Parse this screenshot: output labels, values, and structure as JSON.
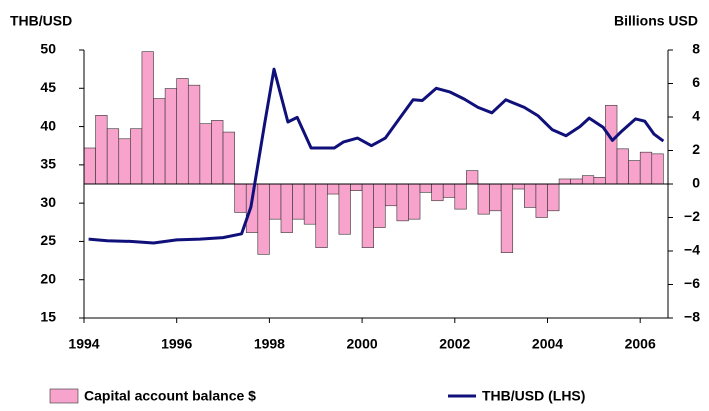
{
  "chart_data": {
    "type": "combo",
    "y_label": "THB/USD",
    "y2_label": "Billions USD",
    "xlim": [
      1994,
      2006.6
    ],
    "xticks": [
      1994,
      1996,
      1998,
      2000,
      2002,
      2004,
      2006
    ],
    "ylim": [
      15,
      50
    ],
    "yticks": [
      15,
      20,
      25,
      30,
      35,
      40,
      45,
      50
    ],
    "y2lim": [
      -8,
      8
    ],
    "y2ticks": [
      {
        "value": -8,
        "label": "−8"
      },
      {
        "value": -6,
        "label": "−6"
      },
      {
        "value": -4,
        "label": "−4"
      },
      {
        "value": -2,
        "label": "−2"
      },
      0,
      2,
      4,
      6,
      8
    ],
    "series": [
      {
        "name": "Capital account balance $",
        "type": "bar",
        "axis": "y2",
        "color": "#f7a3cb",
        "x": [
          1994,
          1994.25,
          1994.5,
          1994.75,
          1995,
          1995.25,
          1995.5,
          1995.75,
          1996,
          1996.25,
          1996.5,
          1996.75,
          1997,
          1997.25,
          1997.5,
          1997.75,
          1998,
          1998.25,
          1998.5,
          1998.75,
          1999,
          1999.25,
          1999.5,
          1999.75,
          2000,
          2000.25,
          2000.5,
          2000.75,
          2001,
          2001.25,
          2001.5,
          2001.75,
          2002,
          2002.25,
          2002.5,
          2002.75,
          2003,
          2003.25,
          2003.5,
          2003.75,
          2004,
          2004.25,
          2004.5,
          2004.75,
          2005,
          2005.25,
          2005.5,
          2005.75,
          2006,
          2006.25
        ],
        "values": [
          2.15,
          4.1,
          3.3,
          2.7,
          3.3,
          7.9,
          5.1,
          5.7,
          6.3,
          5.9,
          3.6,
          3.8,
          3.1,
          -1.7,
          -2.9,
          -4.2,
          -2.1,
          -2.9,
          -2.1,
          -2.4,
          -3.8,
          -0.6,
          -3.0,
          -0.4,
          -3.8,
          -2.6,
          -1.3,
          -2.2,
          -2.1,
          -0.5,
          -1.0,
          -0.8,
          -1.5,
          0.8,
          -1.8,
          -1.6,
          -4.1,
          -0.3,
          -1.4,
          -2.0,
          -1.6,
          0.3,
          0.3,
          0.5,
          0.4,
          4.7,
          2.1,
          1.4,
          1.9,
          1.8
        ]
      },
      {
        "name": "THB/USD (LHS)",
        "type": "line",
        "color": "#10107a",
        "x": [
          1994.1,
          1994.5,
          1995,
          1995.5,
          1996,
          1996.5,
          1997,
          1997.4,
          1997.6,
          1997.9,
          1998.1,
          1998.4,
          1998.6,
          1998.9,
          1999.4,
          1999.6,
          1999.9,
          2000.2,
          2000.5,
          2000.8,
          2001.1,
          2001.3,
          2001.6,
          2001.9,
          2002.2,
          2002.5,
          2002.8,
          2003.1,
          2003.5,
          2003.8,
          2004.1,
          2004.4,
          2004.7,
          2004.9,
          2005.2,
          2005.4,
          2005.6,
          2005.9,
          2006.1,
          2006.3,
          2006.5
        ],
        "values": [
          25.3,
          25.1,
          25.0,
          24.8,
          25.2,
          25.3,
          25.5,
          26.0,
          29.5,
          40.5,
          47.5,
          40.6,
          41.2,
          37.2,
          37.2,
          38.0,
          38.5,
          37.5,
          38.5,
          41.0,
          43.5,
          43.4,
          45.0,
          44.5,
          43.6,
          42.5,
          41.8,
          43.5,
          42.5,
          41.4,
          39.6,
          38.8,
          40.0,
          41.1,
          39.9,
          38.2,
          39.4,
          41.0,
          40.7,
          39.0,
          38.1
        ]
      }
    ]
  }
}
